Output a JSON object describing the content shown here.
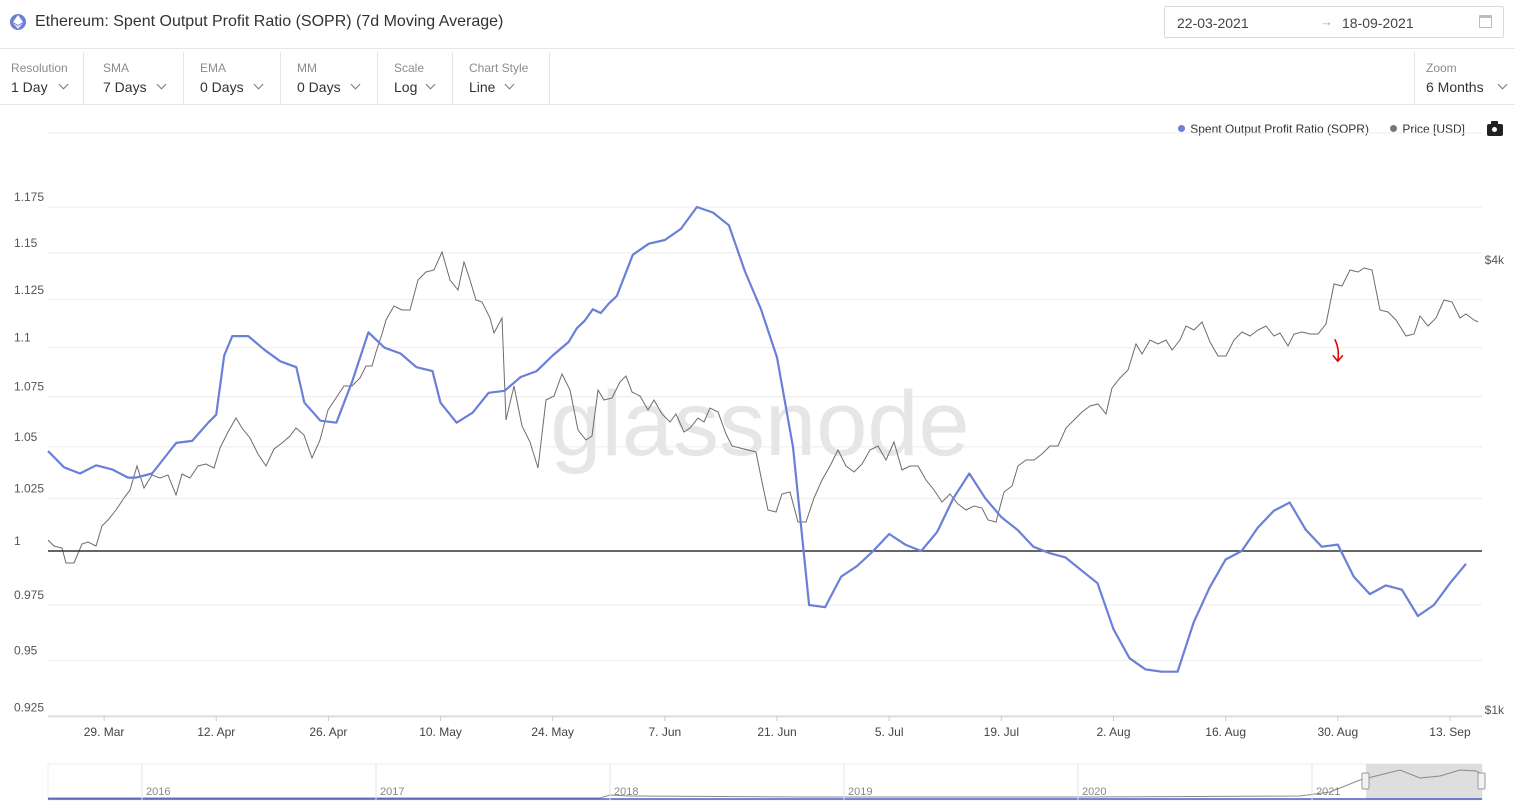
{
  "header": {
    "title": "Ethereum: Spent Output Profit Ratio (SOPR) (7d Moving Average)",
    "date_start": "22-03-2021",
    "date_arrow": "→",
    "date_end": "18-09-2021"
  },
  "controls": [
    {
      "label": "Resolution",
      "value": "1 Day"
    },
    {
      "label": "SMA",
      "value": "7 Days"
    },
    {
      "label": "EMA",
      "value": "0 Days"
    },
    {
      "label": "MM",
      "value": "0 Days"
    },
    {
      "label": "Scale",
      "value": "Log"
    },
    {
      "label": "Chart Style",
      "value": "Line"
    }
  ],
  "zoom": {
    "label": "Zoom",
    "value": "6 Months"
  },
  "legend": [
    {
      "name": "Spent Output Profit Ratio (SOPR)",
      "color": "#6b7fd7"
    },
    {
      "name": "Price [USD]",
      "color": "#777777"
    }
  ],
  "watermark": "glassnode",
  "colors": {
    "sopr": "#6b7fd7",
    "price": "#666666",
    "baseline": "#333333",
    "annotation": "#e00000"
  },
  "chart_data": {
    "type": "line",
    "y_left": {
      "scale": "log",
      "range": [
        0.925,
        1.18
      ],
      "ticks": [
        "1.175",
        "1.15",
        "1.125",
        "1.1",
        "1.075",
        "1.05",
        "1.025",
        "1",
        "0.975",
        "0.95",
        "0.925"
      ]
    },
    "y_right": {
      "ticks": [
        "$4k",
        "$1k"
      ]
    },
    "x_ticks": [
      "29. Mar",
      "12. Apr",
      "26. Apr",
      "10. May",
      "24. May",
      "7. Jun",
      "21. Jun",
      "5. Jul",
      "19. Jul",
      "2. Aug",
      "16. Aug",
      "30. Aug",
      "13. Sep"
    ],
    "x_range_days": [
      0,
      179
    ],
    "baseline": 1,
    "series": [
      {
        "name": "Spent Output Profit Ratio (SOPR)",
        "x_days": [
          0,
          2,
          4,
          6,
          8,
          10,
          11,
          13,
          15,
          16,
          18,
          20,
          21,
          22,
          23,
          25,
          27,
          29,
          31,
          32,
          34,
          36,
          38,
          40,
          42,
          44,
          46,
          48,
          49,
          51,
          53,
          55,
          57,
          59,
          61,
          63,
          65,
          66,
          67,
          68,
          69,
          70,
          71,
          73,
          75,
          77,
          79,
          81,
          83,
          85,
          87,
          89,
          91,
          93,
          95,
          97,
          99,
          101,
          103,
          105,
          107,
          109,
          111,
          113,
          115,
          117,
          119,
          121,
          123,
          125,
          127,
          129,
          131,
          133,
          135,
          137,
          139,
          141,
          143,
          145,
          147,
          149,
          151,
          153,
          155,
          157,
          159,
          161,
          163,
          165,
          167,
          169,
          171,
          173,
          175,
          177
        ],
        "values": [
          1.048,
          1.04,
          1.037,
          1.041,
          1.039,
          1.035,
          1.035,
          1.037,
          1.047,
          1.052,
          1.053,
          1.062,
          1.066,
          1.096,
          1.106,
          1.106,
          1.099,
          1.093,
          1.09,
          1.072,
          1.063,
          1.062,
          1.083,
          1.108,
          1.1,
          1.097,
          1.09,
          1.088,
          1.072,
          1.062,
          1.067,
          1.077,
          1.078,
          1.085,
          1.088,
          1.096,
          1.103,
          1.11,
          1.114,
          1.12,
          1.118,
          1.123,
          1.127,
          1.149,
          1.155,
          1.157,
          1.163,
          1.175,
          1.172,
          1.165,
          1.14,
          1.12,
          1.095,
          1.05,
          0.975,
          0.974,
          0.988,
          0.993,
          1.0,
          1.008,
          1.003,
          1.0,
          1.009,
          1.025,
          1.037,
          1.025,
          1.016,
          1.01,
          1.002,
          0.999,
          0.997,
          0.991,
          0.985,
          0.964,
          0.951,
          0.946,
          0.945,
          0.945,
          0.967,
          0.983,
          0.996,
          1.0,
          1.011,
          1.019,
          1.023,
          1.01,
          1.002,
          1.003,
          0.988,
          0.98,
          0.984,
          0.982,
          0.97,
          0.975,
          0.985,
          0.994
        ],
        "color": "#6b7fd7"
      }
    ],
    "annotation": {
      "type": "arrow",
      "x_day": 161,
      "y": 1.091,
      "color": "#e00000"
    },
    "navigator": {
      "labels": [
        "2016",
        "2017",
        "2018",
        "2019",
        "2020",
        "2021"
      ]
    }
  }
}
